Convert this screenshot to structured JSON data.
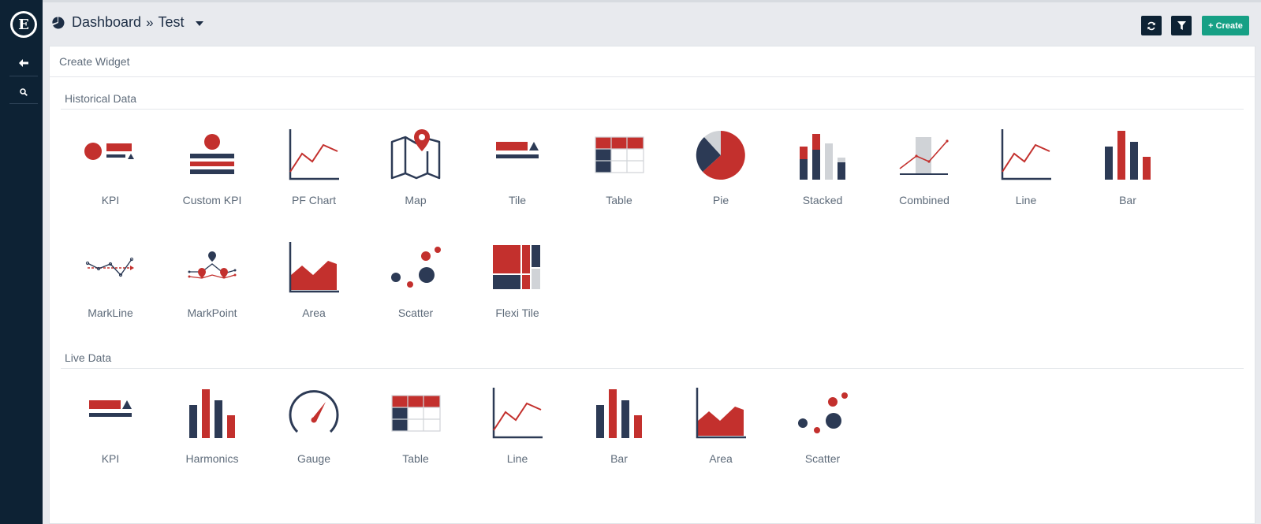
{
  "header": {
    "crumb_1": "Dashboard",
    "crumb_sep": "»",
    "crumb_2": "Test",
    "refresh_icon": "refresh-icon",
    "filter_icon": "filter-icon",
    "create_label": "+ Create"
  },
  "panel": {
    "title": "Create Widget"
  },
  "sections": {
    "historical": "Historical Data",
    "live": "Live Data"
  },
  "historical_widgets": [
    {
      "label": "KPI",
      "icon": "kpi-icon"
    },
    {
      "label": "Custom KPI",
      "icon": "custom-kpi-icon"
    },
    {
      "label": "PF Chart",
      "icon": "pf-chart-icon"
    },
    {
      "label": "Map",
      "icon": "map-icon"
    },
    {
      "label": "Tile",
      "icon": "tile-icon"
    },
    {
      "label": "Table",
      "icon": "table-icon"
    },
    {
      "label": "Pie",
      "icon": "pie-icon"
    },
    {
      "label": "Stacked",
      "icon": "stacked-icon"
    },
    {
      "label": "Combined",
      "icon": "combined-icon"
    },
    {
      "label": "Line",
      "icon": "line-icon"
    },
    {
      "label": "Bar",
      "icon": "bar-icon"
    },
    {
      "label": "MarkLine",
      "icon": "markline-icon"
    },
    {
      "label": "MarkPoint",
      "icon": "markpoint-icon"
    },
    {
      "label": "Area",
      "icon": "area-icon"
    },
    {
      "label": "Scatter",
      "icon": "scatter-icon"
    },
    {
      "label": "Flexi Tile",
      "icon": "flexi-tile-icon"
    }
  ],
  "live_widgets": [
    {
      "label": "KPI",
      "icon": "kpi-icon"
    },
    {
      "label": "Harmonics",
      "icon": "harmonics-icon"
    },
    {
      "label": "Gauge",
      "icon": "gauge-icon"
    },
    {
      "label": "Table",
      "icon": "table-icon"
    },
    {
      "label": "Line",
      "icon": "line-icon"
    },
    {
      "label": "Bar",
      "icon": "bar-icon"
    },
    {
      "label": "Area",
      "icon": "area-icon"
    },
    {
      "label": "Scatter",
      "icon": "scatter-icon"
    }
  ],
  "colors": {
    "navy": "#2c3a55",
    "red": "#c3302d",
    "grey": "#d0d3d7",
    "accent": "#16a085",
    "sidebar": "#0d2234"
  }
}
